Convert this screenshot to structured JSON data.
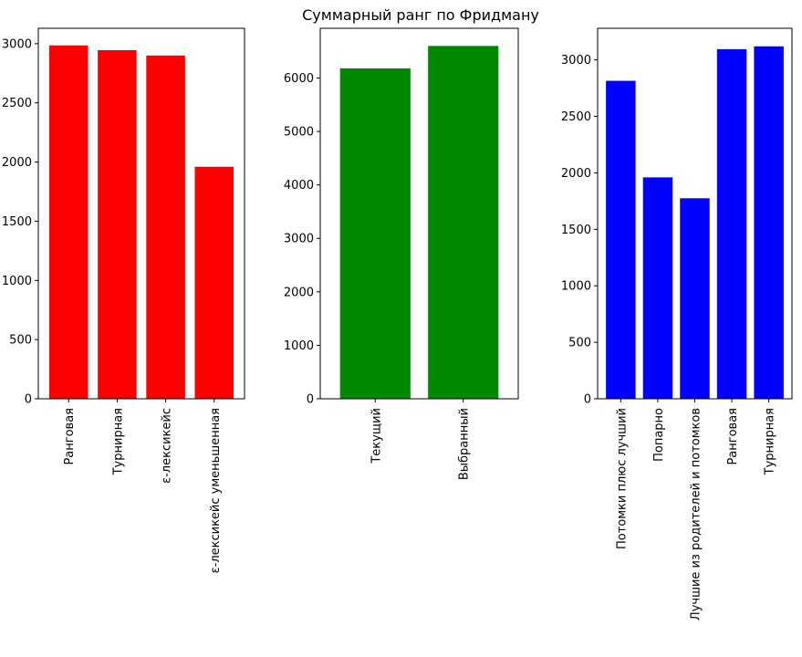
{
  "figure": {
    "title": "Суммарный ранг по Фридману"
  },
  "chart_data": [
    {
      "type": "bar",
      "title": "",
      "xlabel": "",
      "ylabel": "",
      "color": "#ff0000",
      "categories": [
        "Ранговая",
        "Турнирная",
        "ε-лексикейс",
        "ε-лексикейс уменьшенная"
      ],
      "values": [
        2985,
        2945,
        2900,
        1960
      ],
      "ylim": [
        0,
        3130
      ],
      "yticks": [
        0,
        500,
        1000,
        1500,
        2000,
        2500,
        3000
      ],
      "grid": false,
      "legend": "none"
    },
    {
      "type": "bar",
      "title": "",
      "xlabel": "",
      "ylabel": "",
      "color": "#008800",
      "categories": [
        "Текущий",
        "Выбранный"
      ],
      "values": [
        6180,
        6600
      ],
      "ylim": [
        0,
        6930
      ],
      "yticks": [
        0,
        1000,
        2000,
        3000,
        4000,
        5000,
        6000
      ],
      "grid": false,
      "legend": "none"
    },
    {
      "type": "bar",
      "title": "",
      "xlabel": "",
      "ylabel": "",
      "color": "#0000ff",
      "categories": [
        "Потомки плюс лучший",
        "Попарно",
        "Лучшие из родителей и потомков",
        "Ранговая",
        "Турнирная"
      ],
      "values": [
        2815,
        1960,
        1775,
        3095,
        3120
      ],
      "ylim": [
        0,
        3280
      ],
      "yticks": [
        0,
        500,
        1000,
        1500,
        2000,
        2500,
        3000
      ],
      "grid": false,
      "legend": "none"
    }
  ]
}
